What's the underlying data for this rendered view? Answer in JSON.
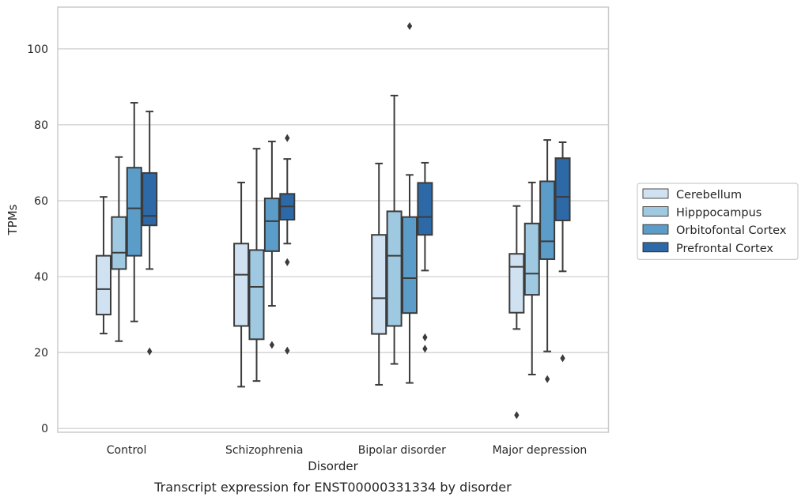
{
  "chart_data": {
    "type": "box",
    "title": "",
    "caption": "Transcript expression for ENST00000331334 by disorder",
    "xlabel": "Disorder",
    "ylabel": "TPMs",
    "ylim": [
      -1,
      111
    ],
    "yticks": [
      0,
      20,
      40,
      60,
      80,
      100
    ],
    "grid": "horizontal",
    "legend_position": "outside-right",
    "categories": [
      "Control",
      "Schizophrenia",
      "Bipolar disorder",
      "Major depression"
    ],
    "series": [
      {
        "name": "Cerebellum",
        "color": "#d0e2f1",
        "boxes": [
          {
            "whislo": 25,
            "q1": 30,
            "med": 36.7,
            "q3": 45.5,
            "whishi": 61,
            "fliers": []
          },
          {
            "whislo": 11,
            "q1": 27,
            "med": 40.5,
            "q3": 48.7,
            "whishi": 64.8,
            "fliers": []
          },
          {
            "whislo": 11.5,
            "q1": 24.9,
            "med": 34.3,
            "q3": 51,
            "whishi": 69.8,
            "fliers": []
          },
          {
            "whislo": 26.2,
            "q1": 30.5,
            "med": 42.6,
            "q3": 46,
            "whishi": 58.6,
            "fliers": [
              3.5
            ]
          }
        ]
      },
      {
        "name": "Hipppocampus",
        "color": "#9ec9e1",
        "boxes": [
          {
            "whislo": 23,
            "q1": 42,
            "med": 46.3,
            "q3": 55.7,
            "whishi": 71.5,
            "fliers": []
          },
          {
            "whislo": 12.5,
            "q1": 23.5,
            "med": 37.3,
            "q3": 47,
            "whishi": 73.7,
            "fliers": []
          },
          {
            "whislo": 17,
            "q1": 27,
            "med": 45.5,
            "q3": 57.2,
            "whishi": 87.7,
            "fliers": []
          },
          {
            "whislo": 14.2,
            "q1": 35.2,
            "med": 40.8,
            "q3": 54,
            "whishi": 64.8,
            "fliers": []
          }
        ]
      },
      {
        "name": "Orbitofontal Cortex",
        "color": "#5b9cc9",
        "boxes": [
          {
            "whislo": 28.2,
            "q1": 45.5,
            "med": 58,
            "q3": 68.7,
            "whishi": 85.8,
            "fliers": []
          },
          {
            "whislo": 32.3,
            "q1": 46.7,
            "med": 54.6,
            "q3": 60.6,
            "whishi": 75.6,
            "fliers": [
              22
            ]
          },
          {
            "whislo": 12,
            "q1": 30.4,
            "med": 39.6,
            "q3": 55.7,
            "whishi": 66.8,
            "fliers": [
              106
            ]
          },
          {
            "whislo": 20.3,
            "q1": 44.6,
            "med": 49.3,
            "q3": 65.1,
            "whishi": 76,
            "fliers": [
              13
            ]
          }
        ]
      },
      {
        "name": "Prefrontal Cortex",
        "color": "#2d69a6",
        "boxes": [
          {
            "whislo": 42,
            "q1": 53.5,
            "med": 56,
            "q3": 67.3,
            "whishi": 83.5,
            "fliers": [
              20.3
            ]
          },
          {
            "whislo": 48.7,
            "q1": 55,
            "med": 58.5,
            "q3": 61.8,
            "whishi": 71,
            "fliers": [
              76.5,
              43.8,
              20.5
            ]
          },
          {
            "whislo": 41.6,
            "q1": 51,
            "med": 55.7,
            "q3": 64.7,
            "whishi": 70,
            "fliers": [
              24,
              21
            ]
          },
          {
            "whislo": 41.4,
            "q1": 54.8,
            "med": 61,
            "q3": 71.2,
            "whishi": 75.4,
            "fliers": [
              18.5
            ]
          }
        ]
      }
    ]
  },
  "colors": {
    "grid": "#cccccc",
    "frame": "#cccccc",
    "box_edge": "#3b3b3b",
    "text": "#262626"
  }
}
